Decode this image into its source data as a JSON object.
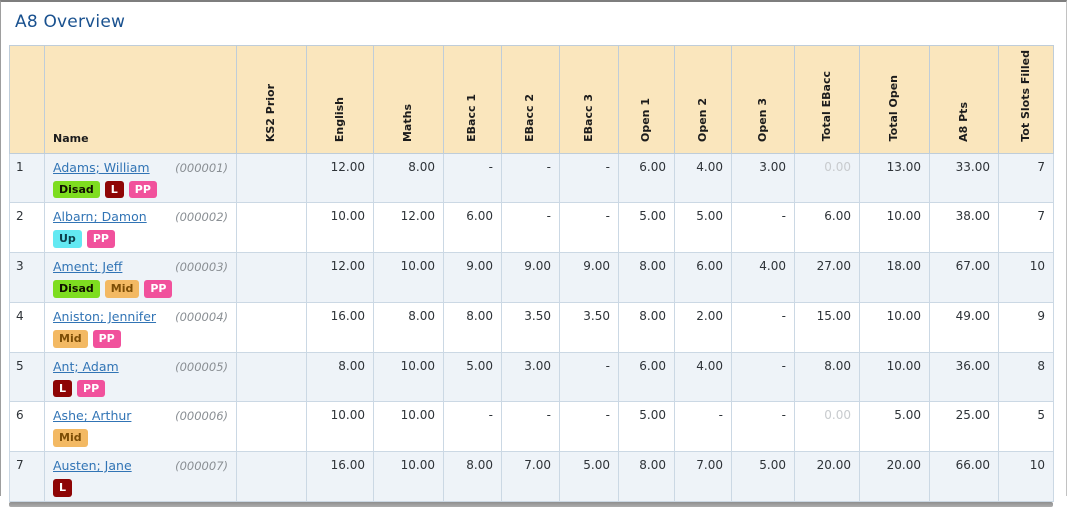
{
  "page": {
    "title": "A8 Overview"
  },
  "colors": {
    "title": "#19518f",
    "header_bg": "#fae6bd",
    "odd_row_bg": "#eef3f8",
    "link": "#3174b5",
    "muted_value": "#c8cbce",
    "badges": {
      "disad": {
        "bg": "#7edd20",
        "fg": "#101000"
      },
      "l": {
        "bg": "#8e0505",
        "fg": "#ffffff"
      },
      "pp": {
        "bg": "#f1519c",
        "fg": "#ffffff"
      },
      "up": {
        "bg": "#63e9f2",
        "fg": "#0b3f4a"
      },
      "mid": {
        "bg": "#f3b963",
        "fg": "#7c4d05"
      }
    }
  },
  "table": {
    "columns": [
      "",
      "Name",
      "KS2 Prior",
      "English",
      "Maths",
      "EBacc 1",
      "EBacc 2",
      "EBacc 3",
      "Open 1",
      "Open 2",
      "Open 3",
      "Total EBacc",
      "Total Open",
      "A8 Pts",
      "Tot Slots Filled"
    ],
    "col_keys": [
      "ks2-prior",
      "english",
      "maths",
      "ebacc-1",
      "ebacc-2",
      "ebacc-3",
      "open-1",
      "open-2",
      "open-3",
      "total-ebacc",
      "total-open",
      "a8-pts",
      "tot-slots-filled"
    ],
    "rows": [
      {
        "num": "1",
        "name": "Adams; William",
        "id": "(000001)",
        "badges": [
          {
            "label": "Disad",
            "type": "disad"
          },
          {
            "label": "L",
            "type": "l"
          },
          {
            "label": "PP",
            "type": "pp"
          }
        ],
        "cells": [
          "",
          "12.00",
          "8.00",
          "-",
          "-",
          "-",
          "6.00",
          "4.00",
          "3.00",
          "0.00",
          "13.00",
          "33.00",
          "7"
        ],
        "muted": [
          9
        ]
      },
      {
        "num": "2",
        "name": "Albarn; Damon",
        "id": "(000002)",
        "badges": [
          {
            "label": "Up",
            "type": "up"
          },
          {
            "label": "PP",
            "type": "pp"
          }
        ],
        "cells": [
          "",
          "10.00",
          "12.00",
          "6.00",
          "-",
          "-",
          "5.00",
          "5.00",
          "-",
          "6.00",
          "10.00",
          "38.00",
          "7"
        ],
        "muted": []
      },
      {
        "num": "3",
        "name": "Ament; Jeff",
        "id": "(000003)",
        "badges": [
          {
            "label": "Disad",
            "type": "disad"
          },
          {
            "label": "Mid",
            "type": "mid"
          },
          {
            "label": "PP",
            "type": "pp"
          }
        ],
        "cells": [
          "",
          "12.00",
          "10.00",
          "9.00",
          "9.00",
          "9.00",
          "8.00",
          "6.00",
          "4.00",
          "27.00",
          "18.00",
          "67.00",
          "10"
        ],
        "muted": []
      },
      {
        "num": "4",
        "name": "Aniston; Jennifer",
        "id": "(000004)",
        "badges": [
          {
            "label": "Mid",
            "type": "mid"
          },
          {
            "label": "PP",
            "type": "pp"
          }
        ],
        "cells": [
          "",
          "16.00",
          "8.00",
          "8.00",
          "3.50",
          "3.50",
          "8.00",
          "2.00",
          "-",
          "15.00",
          "10.00",
          "49.00",
          "9"
        ],
        "muted": []
      },
      {
        "num": "5",
        "name": "Ant; Adam",
        "id": "(000005)",
        "badges": [
          {
            "label": "L",
            "type": "l"
          },
          {
            "label": "PP",
            "type": "pp"
          }
        ],
        "cells": [
          "",
          "8.00",
          "10.00",
          "5.00",
          "3.00",
          "-",
          "6.00",
          "4.00",
          "-",
          "8.00",
          "10.00",
          "36.00",
          "8"
        ],
        "muted": []
      },
      {
        "num": "6",
        "name": "Ashe; Arthur",
        "id": "(000006)",
        "badges": [
          {
            "label": "Mid",
            "type": "mid"
          }
        ],
        "cells": [
          "",
          "10.00",
          "10.00",
          "-",
          "-",
          "-",
          "5.00",
          "-",
          "-",
          "0.00",
          "5.00",
          "25.00",
          "5"
        ],
        "muted": [
          9
        ]
      },
      {
        "num": "7",
        "name": "Austen; Jane",
        "id": "(000007)",
        "badges": [
          {
            "label": "L",
            "type": "l"
          }
        ],
        "cells": [
          "",
          "16.00",
          "10.00",
          "8.00",
          "7.00",
          "5.00",
          "8.00",
          "7.00",
          "5.00",
          "20.00",
          "20.00",
          "66.00",
          "10"
        ],
        "muted": []
      }
    ]
  }
}
